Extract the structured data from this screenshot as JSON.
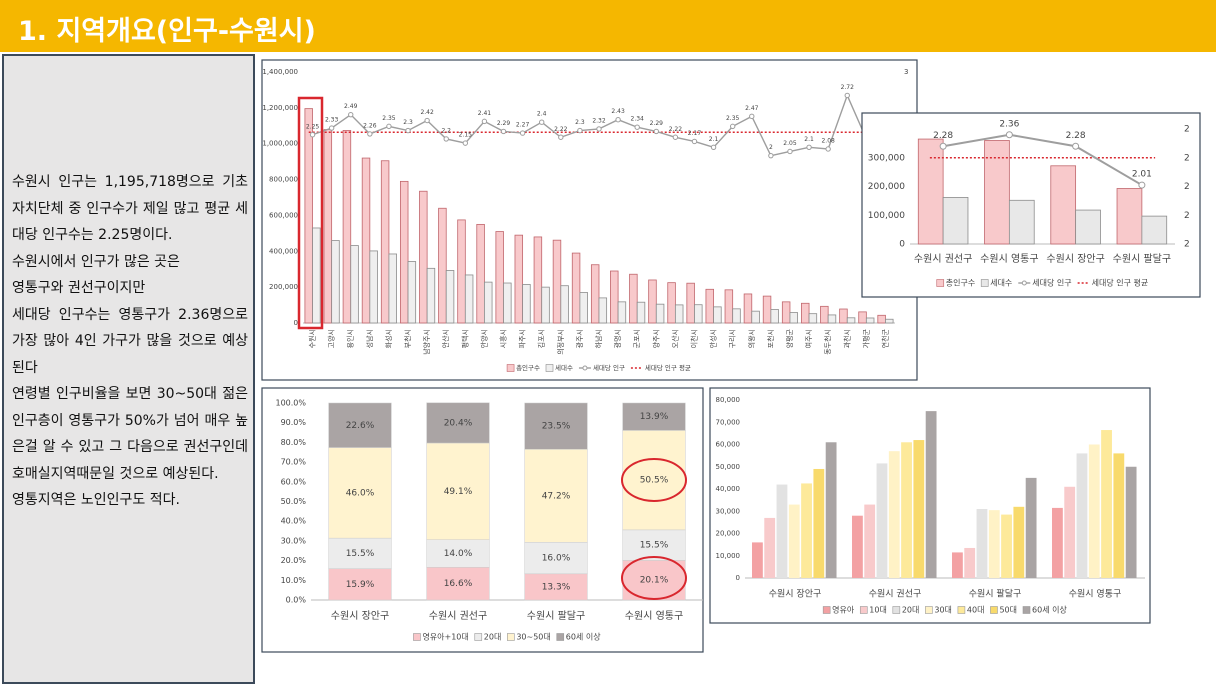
{
  "header": {
    "title": "1. 지역개요(인구-수원시)"
  },
  "text": {
    "paragraphs": [
      "수원시 인구는 1,195,718명으로 기초 자치단체 중 인구수가 제일 많고 평균 세대당 인구수는 2.25명이다.",
      "수원시에서 인구가 많은 곳은",
      "영통구와 권선구이지만",
      "세대당 인구수는 영통구가 2.36명으로 가장 많아 4인 가구가 많을 것으로 예상된다",
      "연령별 인구비율을 보면 30~50대 젊은 인구층이 영통구가 50%가 넘어 매우 높은걸 알 수 있고 그 다음으로 권선구인데 호매실지역때문일 것으로 예상된다.",
      "영통지역은 노인인구도 적다."
    ]
  },
  "chart_data": [
    {
      "type": "combo",
      "categories": [
        "수원시",
        "고양시",
        "용인시",
        "성남시",
        "화성시",
        "부천시",
        "남양주시",
        "안산시",
        "평택시",
        "안양시",
        "시흥시",
        "파주시",
        "김포시",
        "의정부시",
        "광주시",
        "하남시",
        "광명시",
        "군포시",
        "양주시",
        "오산시",
        "이천시",
        "안성시",
        "구리시",
        "의왕시",
        "포천시",
        "양평군",
        "여주시",
        "동두천시",
        "과천시",
        "가평군",
        "연천군"
      ],
      "series": [
        {
          "name": "총인구수",
          "type": "bar",
          "color": "#f8c9cb",
          "edgecolor": "#c0666c",
          "values": [
            1195718,
            1079000,
            1074000,
            920000,
            905000,
            790000,
            735000,
            640000,
            575000,
            550000,
            510000,
            490000,
            480000,
            462000,
            390000,
            325000,
            290000,
            272000,
            240000,
            225000,
            222000,
            188000,
            185000,
            162000,
            150000,
            118000,
            110000,
            93000,
            78000,
            62000,
            43000
          ]
        },
        {
          "name": "세대수",
          "type": "bar",
          "color": "#efefef",
          "edgecolor": "#8c8c8c",
          "values": [
            530000,
            460000,
            432000,
            402000,
            385000,
            343000,
            305000,
            293000,
            268000,
            228000,
            223000,
            215000,
            200000,
            208000,
            170000,
            140000,
            118000,
            116000,
            105000,
            101000,
            102000,
            90000,
            79000,
            66000,
            75000,
            58000,
            52000,
            45000,
            29000,
            28000,
            21000
          ]
        },
        {
          "name": "세대당 인구",
          "type": "line",
          "axis": "y2",
          "color": "#9e9e9e",
          "values": [
            2.25,
            2.33,
            2.49,
            2.26,
            2.35,
            2.3,
            2.42,
            2.2,
            2.15,
            2.41,
            2.29,
            2.27,
            2.4,
            2.22,
            2.3,
            2.32,
            2.43,
            2.34,
            2.29,
            2.22,
            2.17,
            2.1,
            2.35,
            2.47,
            2,
            2.05,
            2.1,
            2.08,
            2.72,
            2.2,
            2.1
          ]
        }
      ],
      "average": {
        "name": "세대당 인구 평균",
        "value": 2.28,
        "color": "#d9272e"
      },
      "ylim": [
        0,
        1400000
      ],
      "yticks": [
        0,
        {
          "value": 200000,
          "label": "200,000"
        },
        {
          "value": 400000,
          "label": "400,000"
        },
        {
          "value": 600000,
          "label": "600,000"
        },
        {
          "value": 800000,
          "label": "800,000"
        },
        {
          "value": 1000000,
          "label": "1,000,000"
        },
        {
          "value": 1200000,
          "label": "1,200,000"
        },
        {
          "value": 1400000,
          "label": "1,400,000"
        }
      ],
      "y2lim": [
        0,
        3
      ],
      "y2ticks": [
        3
      ],
      "grid": false
    },
    {
      "type": "combo",
      "categories": [
        "수원시 권선구",
        "수원시 영통구",
        "수원시 장안구",
        "수원시 팔달구"
      ],
      "series": [
        {
          "name": "총인구수",
          "type": "bar",
          "color": "#f8c9cb",
          "edgecolor": "#c0666c",
          "values": [
            365000,
            360000,
            272000,
            193000
          ]
        },
        {
          "name": "세대수",
          "type": "bar",
          "color": "#e8e8e8",
          "edgecolor": "#8c8c8c",
          "values": [
            162000,
            152000,
            118000,
            97000
          ]
        },
        {
          "name": "세대당 인구",
          "type": "line",
          "axis": "y2",
          "color": "#9e9e9e",
          "values": [
            2.28,
            2.36,
            2.28,
            2.01
          ]
        }
      ],
      "average": {
        "name": "세대당 인구 평균",
        "value": 2.2,
        "color": "#d9272e"
      },
      "ylim": [
        0,
        400000
      ],
      "yticks": [
        0,
        {
          "value": 100000,
          "label": "100,000"
        },
        {
          "value": 200000,
          "label": "200,000"
        },
        {
          "value": 300000,
          "label": "300,000"
        }
      ],
      "y2lim": [
        1.6,
        2.4
      ],
      "y2ticks": [
        {
          "value": 1.6,
          "label": "2"
        },
        {
          "value": 1.8,
          "label": "2"
        },
        {
          "value": 2.0,
          "label": "2"
        },
        {
          "value": 2.2,
          "label": "2"
        },
        {
          "value": 2.4,
          "label": "2"
        }
      ],
      "grid": false
    },
    {
      "type": "stacked_bar",
      "categories": [
        "수원시 장안구",
        "수원시 권선구",
        "수원시 팔달구",
        "수원시 영통구"
      ],
      "series": [
        {
          "name": "영유아+10대",
          "color": "#f9c6c9",
          "values": [
            15.9,
            16.6,
            13.3,
            20.1
          ],
          "value_labels": [
            "15.9%",
            "16.6%",
            "13.3%",
            "20.1%"
          ]
        },
        {
          "name": "20대",
          "color": "#ececec",
          "values": [
            15.5,
            14.0,
            16.0,
            15.5
          ],
          "value_labels": [
            "15.5%",
            "14.0%",
            "16.0%",
            "15.5%"
          ]
        },
        {
          "name": "30~50대",
          "color": "#fff3cf",
          "values": [
            46.0,
            49.1,
            47.2,
            50.5
          ],
          "value_labels": [
            "46.0%",
            "49.1%",
            "47.2%",
            "50.5%"
          ]
        },
        {
          "name": "60세 이상",
          "color": "#aaa4a4",
          "values": [
            22.6,
            20.4,
            23.5,
            13.9
          ],
          "value_labels": [
            "22.6%",
            "20.4%",
            "23.5%",
            "13.9%"
          ]
        }
      ],
      "ylim": [
        0,
        100
      ],
      "yticks": [
        {
          "value": 0,
          "label": "0.0%"
        },
        {
          "value": 10,
          "label": "10.0%"
        },
        {
          "value": 20,
          "label": "20.0%"
        },
        {
          "value": 30,
          "label": "30.0%"
        },
        {
          "value": 40,
          "label": "40.0%"
        },
        {
          "value": 50,
          "label": "50.0%"
        },
        {
          "value": 60,
          "label": "60.0%"
        },
        {
          "value": 70,
          "label": "70.0%"
        },
        {
          "value": 80,
          "label": "80.0%"
        },
        {
          "value": 90,
          "label": "90.0%"
        },
        {
          "value": 100,
          "label": "100.0%"
        }
      ],
      "grid": false
    },
    {
      "type": "bar",
      "categories": [
        "수원시 장안구",
        "수원시 권선구",
        "수원시 팔달구",
        "수원시 영통구"
      ],
      "series": [
        {
          "name": "영유아",
          "color": "#f3a1a3",
          "values": [
            16000,
            28000,
            11500,
            31500
          ]
        },
        {
          "name": "10대",
          "color": "#f8cacb",
          "values": [
            27000,
            33000,
            13500,
            41000
          ]
        },
        {
          "name": "20대",
          "color": "#e2e2e2",
          "values": [
            42000,
            51500,
            31000,
            56000
          ]
        },
        {
          "name": "30대",
          "color": "#fff2c6",
          "values": [
            33000,
            57000,
            30500,
            60000
          ]
        },
        {
          "name": "40대",
          "color": "#fde99a",
          "values": [
            42500,
            61000,
            28500,
            66500
          ]
        },
        {
          "name": "50대",
          "color": "#f8da6c",
          "values": [
            49000,
            62000,
            32000,
            56000
          ]
        },
        {
          "name": "60세 이상",
          "color": "#a9a4a4",
          "values": [
            61000,
            75000,
            45000,
            50000
          ]
        }
      ],
      "ylim": [
        0,
        80000
      ],
      "yticks": [
        0,
        {
          "value": 10000,
          "label": "10,000"
        },
        {
          "value": 20000,
          "label": "20,000"
        },
        {
          "value": 30000,
          "label": "30,000"
        },
        {
          "value": 40000,
          "label": "40,000"
        },
        {
          "value": 50000,
          "label": "50,000"
        },
        {
          "value": 60000,
          "label": "60,000"
        },
        {
          "value": 70000,
          "label": "70,000"
        },
        {
          "value": 80000,
          "label": "80,000"
        }
      ],
      "grid": false
    }
  ]
}
